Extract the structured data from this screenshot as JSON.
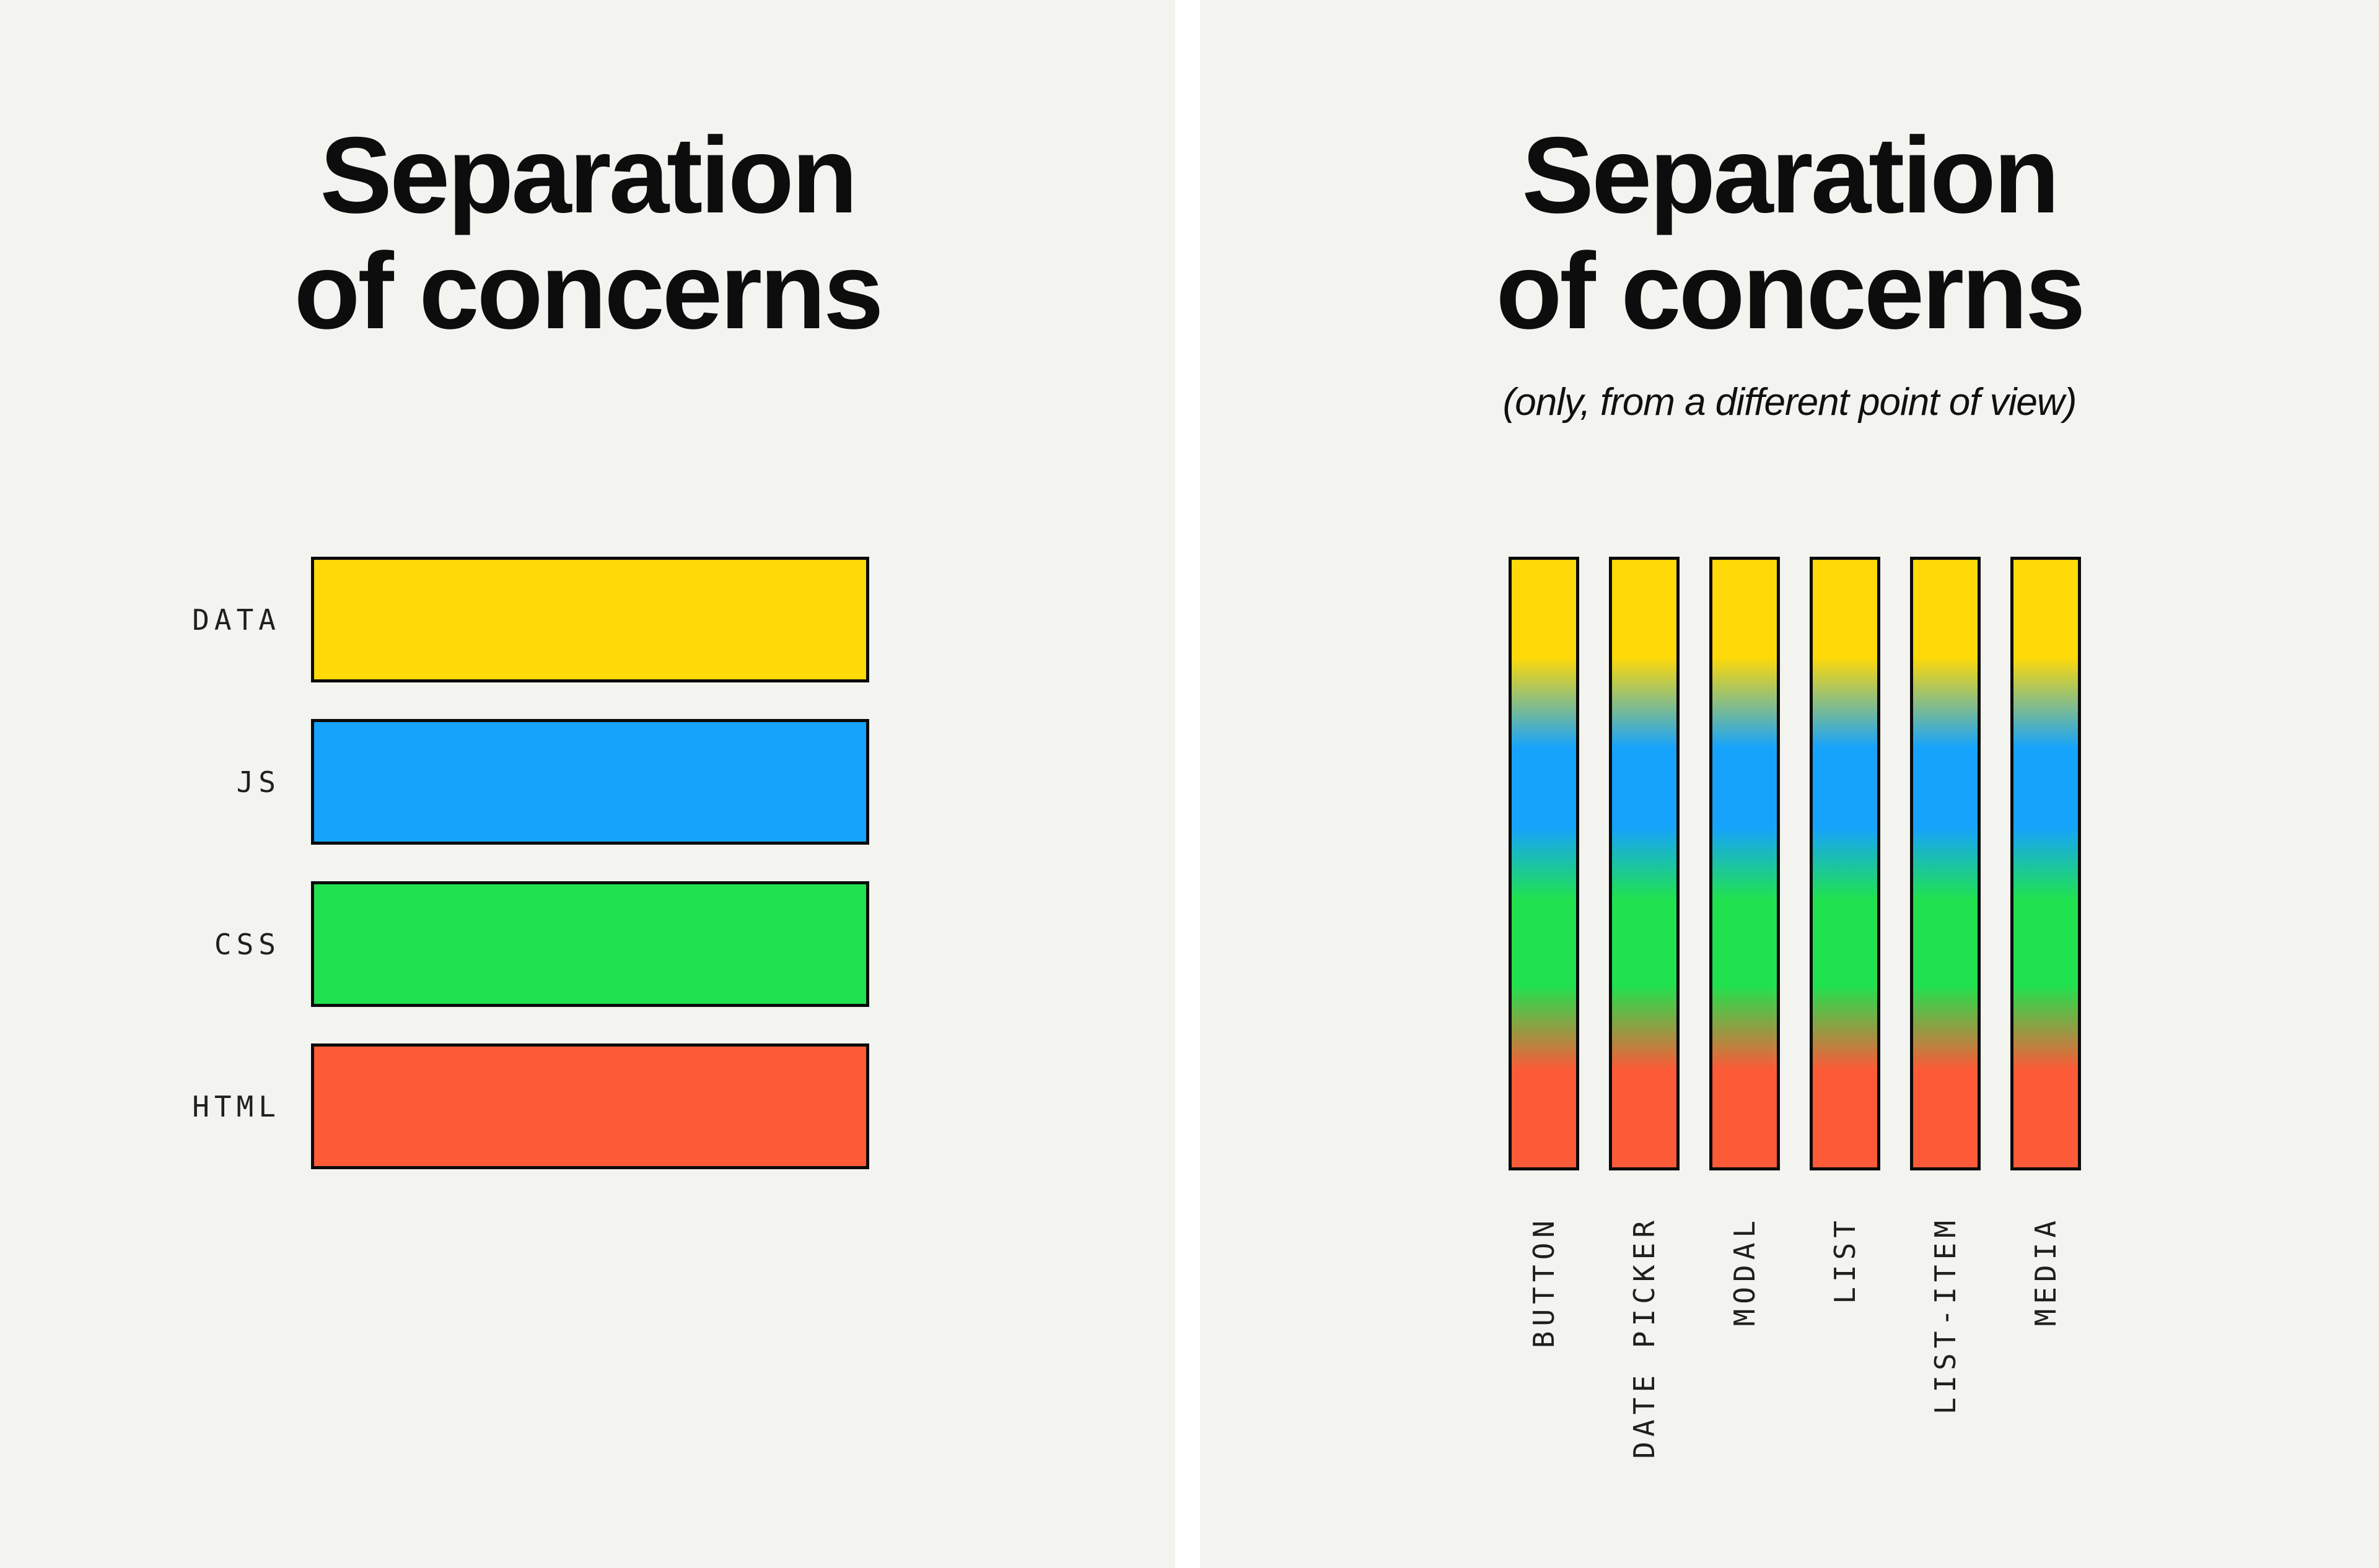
{
  "background": {
    "left": "#f3f4f0",
    "right": "#f3f4f0",
    "divider": "#ffffff"
  },
  "left_panel": {
    "title_line1": "Separation",
    "title_line2": "of concerns",
    "layers": [
      {
        "label": "DATA",
        "color": "#ffd908"
      },
      {
        "label": "JS",
        "color": "#16a3fc"
      },
      {
        "label": "CSS",
        "color": "#20e24e"
      },
      {
        "label": "HTML",
        "color": "#fd5a38"
      }
    ]
  },
  "right_panel": {
    "title_line1": "Separation",
    "title_line2": "of concerns",
    "subtitle": "(only, from a different point of view)",
    "components": [
      "BUTTON",
      "DATE PICKER",
      "MODAL",
      "LIST",
      "LIST-ITEM",
      "MEDIA"
    ],
    "gradient_stops": [
      "#ffd908 0%",
      "#ffd908 16%",
      "#16a3fc 31%",
      "#16a3fc 44%",
      "#20e24e 56%",
      "#20e24e 70%",
      "#fd5a38 84%",
      "#fd5a38 100%"
    ]
  }
}
